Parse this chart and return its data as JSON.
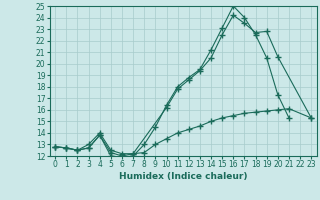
{
  "xlabel": "Humidex (Indice chaleur)",
  "bg_color": "#cce8e8",
  "grid_color": "#a8cccc",
  "line_color": "#1a6b5a",
  "spine_color": "#1a6b5a",
  "xlim": [
    -0.5,
    23.5
  ],
  "ylim": [
    12,
    25
  ],
  "xticks": [
    0,
    1,
    2,
    3,
    4,
    5,
    6,
    7,
    8,
    9,
    10,
    11,
    12,
    13,
    14,
    15,
    16,
    17,
    18,
    19,
    20,
    21,
    22,
    23
  ],
  "yticks": [
    12,
    13,
    14,
    15,
    16,
    17,
    18,
    19,
    20,
    21,
    22,
    23,
    24,
    25
  ],
  "line1_x": [
    0,
    1,
    2,
    3,
    4,
    5,
    6,
    7,
    8,
    9,
    10,
    11,
    12,
    13,
    14,
    15,
    16,
    17,
    18,
    19,
    20,
    21
  ],
  "line1_y": [
    12.8,
    12.7,
    12.5,
    12.7,
    13.8,
    12.0,
    11.9,
    12.0,
    13.0,
    14.5,
    16.4,
    18.0,
    18.8,
    19.5,
    21.2,
    23.1,
    25.0,
    24.0,
    22.5,
    20.5,
    17.3,
    15.3
  ],
  "line2_x": [
    0,
    1,
    2,
    3,
    4,
    5,
    6,
    7,
    10,
    11,
    12,
    13,
    14,
    15,
    16,
    17,
    18,
    19,
    20,
    23
  ],
  "line2_y": [
    12.8,
    12.7,
    12.5,
    12.7,
    13.8,
    12.3,
    12.0,
    12.2,
    16.2,
    17.8,
    18.6,
    19.4,
    20.5,
    22.5,
    24.2,
    23.5,
    22.7,
    22.8,
    20.6,
    15.3
  ],
  "line3_x": [
    0,
    1,
    2,
    3,
    4,
    5,
    6,
    7,
    8,
    9,
    10,
    11,
    12,
    13,
    14,
    15,
    16,
    17,
    18,
    19,
    20,
    21,
    23
  ],
  "line3_y": [
    12.8,
    12.7,
    12.5,
    13.0,
    14.0,
    12.5,
    12.2,
    12.2,
    12.3,
    13.0,
    13.5,
    14.0,
    14.3,
    14.6,
    15.0,
    15.3,
    15.5,
    15.7,
    15.8,
    15.9,
    16.0,
    16.1,
    15.3
  ],
  "tick_labelsize": 5.5,
  "xlabel_fontsize": 6.5
}
